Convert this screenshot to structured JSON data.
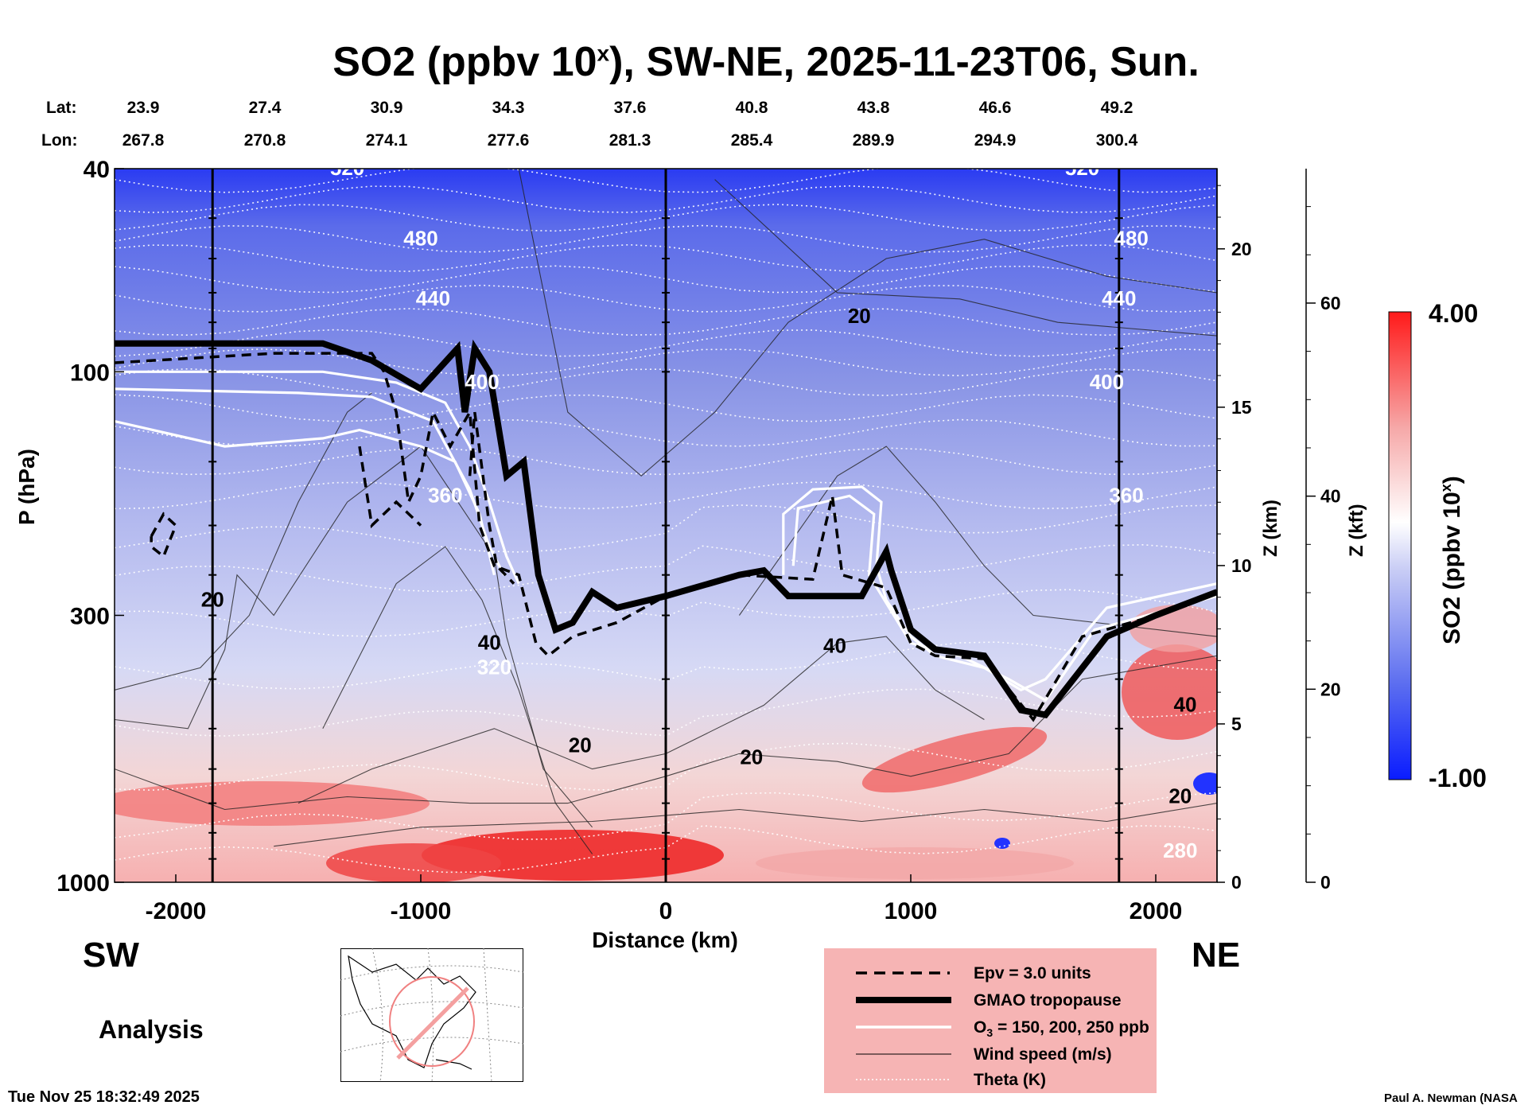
{
  "chart_data": {
    "type": "heatmap",
    "title": "SO2 (ppbv 10",
    "title_sup": "x",
    "title_rest": "), SW-NE, 2025-11-23T06, Sun.",
    "xlabel": "Distance (km)",
    "ylabel": "P (hPa)",
    "zlabel_km": "Z (km)",
    "zlabel_kft": "Z (kft)",
    "xlim": [
      -2250,
      2250
    ],
    "ylim_hpa": [
      1000,
      40
    ],
    "x_ticks": [
      {
        "value": -2000,
        "label": "-2000"
      },
      {
        "value": -1000,
        "label": "-1000"
      },
      {
        "value": 0,
        "label": "0"
      },
      {
        "value": 1000,
        "label": "1000"
      },
      {
        "value": 2000,
        "label": "2000"
      }
    ],
    "y_ticks": [
      {
        "value": 40,
        "label": "40"
      },
      {
        "value": 100,
        "label": "100"
      },
      {
        "value": 300,
        "label": "300"
      },
      {
        "value": 1000,
        "label": "1000"
      }
    ],
    "z_km_ticks": [
      {
        "value": 0,
        "label": "0"
      },
      {
        "value": 5,
        "label": "5"
      },
      {
        "value": 10,
        "label": "10"
      },
      {
        "value": 15,
        "label": "15"
      },
      {
        "value": 20,
        "label": "20"
      }
    ],
    "z_kft_ticks": [
      {
        "value": 0,
        "label": "0"
      },
      {
        "value": 20,
        "label": "20"
      },
      {
        "value": 40,
        "label": "40"
      },
      {
        "value": 60,
        "label": "60"
      }
    ],
    "lat_label": "Lat:",
    "lon_label": "Lon:",
    "lat_values": [
      "23.9",
      "27.4",
      "30.9",
      "34.3",
      "37.6",
      "40.8",
      "43.8",
      "46.6",
      "49.2"
    ],
    "lon_values": [
      "267.8",
      "270.8",
      "274.1",
      "277.6",
      "281.3",
      "285.4",
      "289.9",
      "294.9",
      "300.4"
    ],
    "vertical_markers_km": [
      -1850,
      0,
      1850
    ],
    "colorbar": {
      "label": "SO2 (ppbv 10",
      "label_sup": "x",
      "label_rest": ")",
      "max_label": "4.00",
      "min_label": "-1.00",
      "range": [
        -1.0,
        4.0
      ],
      "colors": [
        "#0a1cff",
        "#ffffff",
        "#ff1a1a"
      ]
    },
    "theta_contours_K": [
      {
        "label": "520",
        "pressure_hpa": 40
      },
      {
        "label": "480",
        "pressure_hpa": 55
      },
      {
        "label": "440",
        "pressure_hpa": 72
      },
      {
        "label": "400",
        "pressure_hpa": 105
      },
      {
        "label": "360",
        "pressure_hpa": 175
      },
      {
        "label": "320",
        "pressure_hpa": 380
      },
      {
        "label": "280",
        "pressure_hpa": 870
      }
    ],
    "wind_speed_labels": [
      {
        "label": "20",
        "x_km": 790,
        "pressure_hpa": 78
      },
      {
        "label": "20",
        "x_km": -1850,
        "pressure_hpa": 280
      },
      {
        "label": "40",
        "x_km": -720,
        "pressure_hpa": 340
      },
      {
        "label": "40",
        "x_km": 690,
        "pressure_hpa": 345
      },
      {
        "label": "20",
        "x_km": -350,
        "pressure_hpa": 540
      },
      {
        "label": "20",
        "x_km": 350,
        "pressure_hpa": 570
      },
      {
        "label": "40",
        "x_km": 2120,
        "pressure_hpa": 450
      },
      {
        "label": "20",
        "x_km": 2100,
        "pressure_hpa": 680
      }
    ],
    "tropopause_hpa": {
      "x_km": [
        -2250,
        -1400,
        -1200,
        -1000,
        -850,
        -820,
        -780,
        -720,
        -650,
        -580,
        -520,
        -450,
        -380,
        -300,
        -200,
        0,
        300,
        400,
        500,
        800,
        900,
        920,
        1000,
        1100,
        1300,
        1450,
        1550,
        1800,
        2000,
        2250
      ],
      "p_hpa": [
        88,
        88,
        95,
        108,
        90,
        120,
        90,
        100,
        160,
        150,
        250,
        320,
        310,
        270,
        290,
        275,
        250,
        245,
        275,
        275,
        225,
        245,
        320,
        350,
        360,
        460,
        470,
        330,
        300,
        270
      ]
    },
    "legend": [
      {
        "style": "dashed",
        "label": "Epv = 3.0 units"
      },
      {
        "style": "thick",
        "label": "GMAO tropopause"
      },
      {
        "style": "white",
        "label": "O",
        "sub": "3",
        "label_rest": " = 150, 200, 250 ppb"
      },
      {
        "style": "thin",
        "label": "Wind speed (m/s)"
      },
      {
        "style": "dotted",
        "label": "Theta (K)"
      }
    ],
    "direction_left": "SW",
    "direction_right": "NE",
    "mode_label": "Analysis",
    "timestamp": "Tue Nov 25 18:32:49 2025",
    "author": "Paul A. Newman (NASA"
  }
}
